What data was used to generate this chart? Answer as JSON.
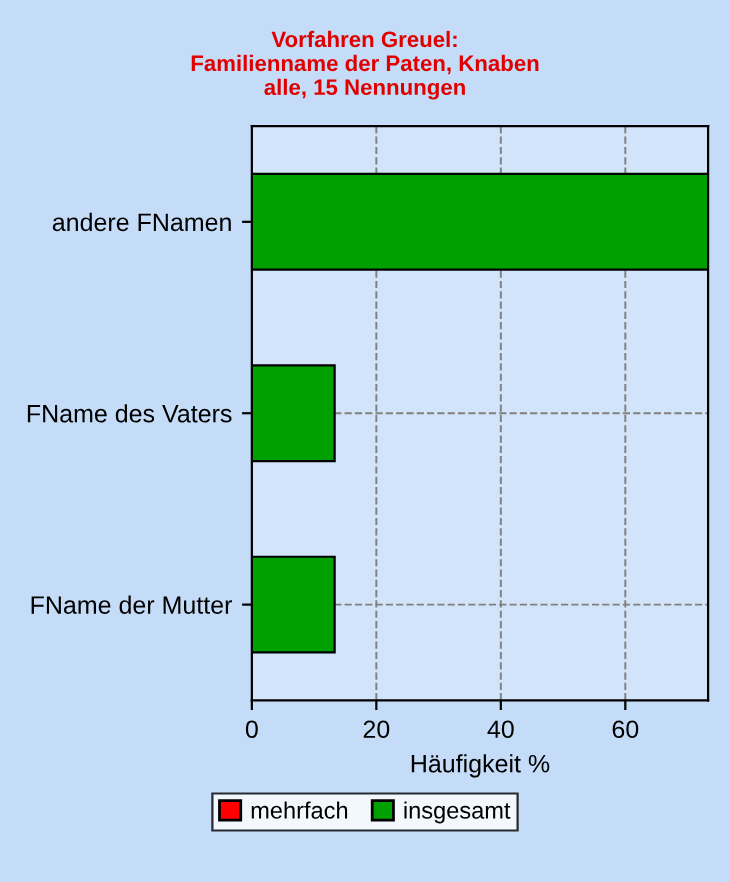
{
  "chart_data": {
    "type": "bar",
    "orientation": "horizontal",
    "title": "Vorfahren Greuel:\nFamilienname der Paten, Knaben\nalle, 15 Nennungen",
    "xlabel": "Häufigkeit %",
    "categories": [
      "andere FNamen",
      "FName des Vaters",
      "FName der Mutter"
    ],
    "series": [
      {
        "name": "mehrfach",
        "color": "#ff0000",
        "values": [
          null,
          null,
          null
        ]
      },
      {
        "name": "insgesamt",
        "color": "#00a000",
        "values": [
          73.3,
          13.3,
          13.3
        ]
      }
    ],
    "xlim": [
      0,
      73.3
    ],
    "xticks": [
      0,
      20,
      40,
      60
    ],
    "grid": true,
    "legend": "bottom"
  }
}
